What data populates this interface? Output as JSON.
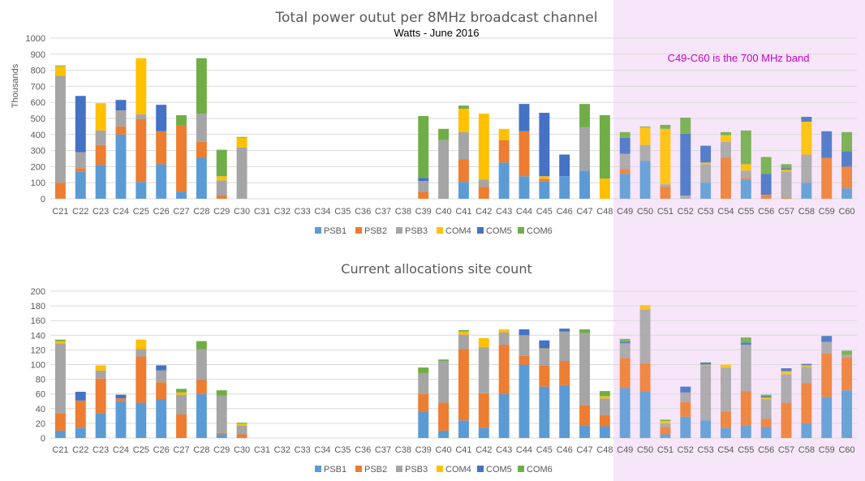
{
  "colors": {
    "PSB1": "#5b9bd5",
    "PSB2": "#ed7d31",
    "PSB3": "#a5a5a5",
    "COM4": "#ffc000",
    "COM5": "#4472c4",
    "COM6": "#70ad47",
    "highlight_band": "#f7e6f9",
    "annotation": "#cc00cc"
  },
  "highlight": {
    "from_category": "C49",
    "to_category": "C60",
    "label": "C49-C60 is the 700 MHz band"
  },
  "chart_data": [
    {
      "type": "bar",
      "stacked": true,
      "title": "Total power outut per 8MHz broadcast channel",
      "subtitle": "Watts - June 2016",
      "xlabel": "",
      "ylabel": "Thousands",
      "ylim": [
        0,
        1000
      ],
      "yticks": [
        0,
        100,
        200,
        300,
        400,
        500,
        600,
        700,
        800,
        900,
        1000
      ],
      "grid": true,
      "legend": "bottom",
      "categories": [
        "C21",
        "C22",
        "C23",
        "C24",
        "C25",
        "C26",
        "C27",
        "C28",
        "C29",
        "C30",
        "C31",
        "C32",
        "C33",
        "C34",
        "C35",
        "C36",
        "C37",
        "C38",
        "C39",
        "C40",
        "C41",
        "C42",
        "C43",
        "C44",
        "C45",
        "C46",
        "C47",
        "C48",
        "C49",
        "C50",
        "C51",
        "C52",
        "C53",
        "C54",
        "C55",
        "C56",
        "C57",
        "C58",
        "C59",
        "C60"
      ],
      "series": [
        {
          "name": "PSB1",
          "values": [
            0,
            170,
            210,
            400,
            105,
            215,
            45,
            255,
            0,
            0,
            0,
            0,
            0,
            0,
            0,
            0,
            0,
            0,
            0,
            0,
            105,
            0,
            225,
            140,
            110,
            140,
            175,
            0,
            155,
            235,
            0,
            0,
            100,
            0,
            120,
            0,
            0,
            100,
            0,
            65
          ]
        },
        {
          "name": "PSB2",
          "values": [
            100,
            20,
            125,
            50,
            390,
            205,
            410,
            100,
            20,
            0,
            0,
            0,
            0,
            0,
            0,
            0,
            0,
            0,
            45,
            0,
            140,
            75,
            140,
            280,
            15,
            0,
            0,
            0,
            30,
            0,
            75,
            0,
            0,
            255,
            10,
            25,
            5,
            0,
            255,
            135
          ]
        },
        {
          "name": "PSB3",
          "values": [
            665,
            100,
            90,
            100,
            30,
            0,
            0,
            175,
            95,
            320,
            0,
            0,
            0,
            0,
            0,
            0,
            0,
            0,
            65,
            365,
            170,
            45,
            0,
            0,
            0,
            0,
            270,
            0,
            95,
            100,
            15,
            20,
            115,
            100,
            45,
            0,
            165,
            175,
            0,
            0
          ]
        },
        {
          "name": "COM4",
          "values": [
            60,
            0,
            170,
            0,
            350,
            0,
            0,
            0,
            25,
            60,
            0,
            0,
            0,
            0,
            0,
            0,
            0,
            0,
            0,
            0,
            145,
            410,
            70,
            0,
            15,
            0,
            0,
            125,
            0,
            110,
            345,
            0,
            10,
            40,
            40,
            0,
            10,
            205,
            0,
            0
          ]
        },
        {
          "name": "COM5",
          "values": [
            0,
            350,
            0,
            65,
            0,
            165,
            0,
            0,
            0,
            0,
            0,
            0,
            0,
            0,
            0,
            0,
            0,
            0,
            20,
            0,
            0,
            0,
            0,
            170,
            395,
            135,
            0,
            0,
            100,
            0,
            0,
            385,
            105,
            0,
            0,
            130,
            10,
            30,
            165,
            95
          ]
        },
        {
          "name": "COM6",
          "values": [
            5,
            0,
            0,
            0,
            0,
            0,
            65,
            345,
            165,
            5,
            0,
            0,
            0,
            0,
            0,
            0,
            0,
            0,
            385,
            70,
            20,
            0,
            0,
            0,
            0,
            0,
            145,
            395,
            35,
            5,
            25,
            100,
            0,
            20,
            210,
            105,
            25,
            0,
            0,
            120
          ]
        }
      ]
    },
    {
      "type": "bar",
      "stacked": true,
      "title": "Current allocations site count",
      "xlabel": "",
      "ylabel": "",
      "ylim": [
        0,
        200
      ],
      "yticks": [
        0,
        20,
        40,
        60,
        80,
        100,
        120,
        140,
        160,
        180,
        200
      ],
      "grid": true,
      "legend": "bottom",
      "categories": [
        "C21",
        "C22",
        "C23",
        "C24",
        "C25",
        "C26",
        "C27",
        "C28",
        "C29",
        "C30",
        "C31",
        "C32",
        "C33",
        "C34",
        "C35",
        "C36",
        "C37",
        "C38",
        "C39",
        "C40",
        "C41",
        "C42",
        "C43",
        "C44",
        "C45",
        "C46",
        "C47",
        "C48",
        "C49",
        "C50",
        "C51",
        "C52",
        "C53",
        "C54",
        "C55",
        "C56",
        "C57",
        "C58",
        "C59",
        "C60"
      ],
      "series": [
        {
          "name": "PSB1",
          "values": [
            10,
            14,
            34,
            50,
            48,
            53,
            0,
            60,
            5,
            0,
            0,
            0,
            0,
            0,
            0,
            0,
            0,
            0,
            36,
            10,
            24,
            14,
            60,
            100,
            70,
            72,
            17,
            16,
            68,
            64,
            5,
            29,
            24,
            14,
            17,
            15,
            0,
            20,
            56,
            65
          ]
        },
        {
          "name": "PSB2",
          "values": [
            24,
            37,
            47,
            4,
            63,
            23,
            32,
            19,
            2,
            5,
            0,
            0,
            0,
            0,
            0,
            0,
            0,
            0,
            24,
            38,
            97,
            47,
            67,
            12,
            29,
            33,
            28,
            15,
            41,
            38,
            10,
            20,
            0,
            22,
            47,
            11,
            48,
            55,
            59,
            45
          ]
        },
        {
          "name": "PSB3",
          "values": [
            95,
            0,
            11,
            0,
            10,
            16,
            27,
            42,
            51,
            12,
            0,
            0,
            0,
            0,
            0,
            0,
            0,
            0,
            28,
            57,
            20,
            63,
            17,
            28,
            22,
            40,
            98,
            23,
            20,
            73,
            5,
            13,
            75,
            60,
            63,
            27,
            39,
            22,
            16,
            3
          ]
        },
        {
          "name": "COM4",
          "values": [
            3,
            0,
            7,
            0,
            13,
            0,
            3,
            0,
            0,
            3,
            0,
            0,
            0,
            0,
            0,
            0,
            0,
            0,
            0,
            0,
            4,
            12,
            4,
            0,
            1,
            0,
            0,
            3,
            0,
            6,
            3,
            0,
            1,
            4,
            0,
            2,
            4,
            2,
            0,
            0
          ]
        },
        {
          "name": "COM5",
          "values": [
            0,
            12,
            0,
            5,
            0,
            7,
            0,
            0,
            0,
            0,
            0,
            0,
            0,
            0,
            0,
            0,
            0,
            0,
            0,
            0,
            0,
            0,
            0,
            8,
            11,
            4,
            0,
            0,
            2,
            0,
            0,
            8,
            3,
            0,
            3,
            2,
            4,
            2,
            8,
            0
          ]
        },
        {
          "name": "COM6",
          "values": [
            2,
            0,
            0,
            0,
            0,
            0,
            5,
            11,
            7,
            1,
            0,
            0,
            0,
            0,
            0,
            0,
            0,
            0,
            8,
            2,
            2,
            0,
            0,
            0,
            0,
            0,
            5,
            7,
            4,
            0,
            2,
            0,
            0,
            0,
            7,
            2,
            0,
            0,
            0,
            6
          ]
        }
      ]
    }
  ]
}
